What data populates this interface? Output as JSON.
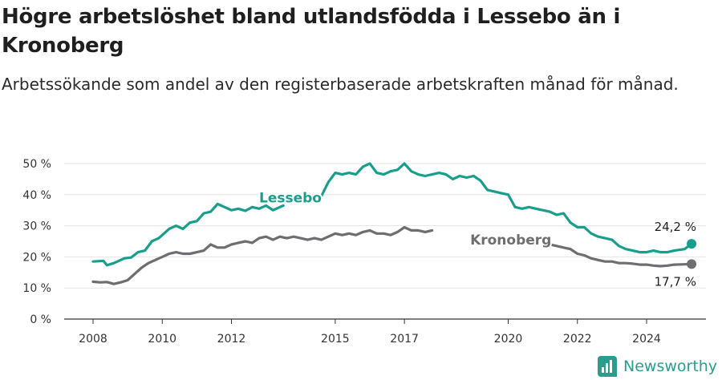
{
  "header": {
    "title": "Högre arbetslöshet bland utlandsfödda i Lessebo än i Kronoberg",
    "subtitle": "Arbetssökande som andel av den registerbaserade arbetskraften månad för månad."
  },
  "brand": {
    "name": "Newsworthy",
    "icon": "bar-chart-logo-icon",
    "color": "#2a9d8f"
  },
  "chart_data": {
    "type": "line",
    "title": "",
    "xlabel": "",
    "ylabel": "",
    "xlim": [
      2007.5,
      2025.9
    ],
    "ylim": [
      0,
      50
    ],
    "grid": true,
    "y_ticks": [
      0,
      10,
      20,
      30,
      40,
      50
    ],
    "y_tick_labels": [
      "0 %",
      "10 %",
      "20 %",
      "30 %",
      "40 %",
      "50 %"
    ],
    "x_ticks": [
      2008,
      2010,
      2012,
      2015,
      2017,
      2020,
      2022,
      2024
    ],
    "x_tick_labels": [
      "2008",
      "2010",
      "2012",
      "2015",
      "2017",
      "2020",
      "2022",
      "2024"
    ],
    "series": [
      {
        "name": "Lessebo",
        "color": "#1a9e8c",
        "end_label": "24,2 %",
        "end_value": 24.2,
        "points": [
          [
            2008.0,
            18.5
          ],
          [
            2008.3,
            18.7
          ],
          [
            2008.4,
            17.3
          ],
          [
            2008.6,
            18.0
          ],
          [
            2008.9,
            19.5
          ],
          [
            2009.1,
            19.8
          ],
          [
            2009.3,
            21.5
          ],
          [
            2009.5,
            22.0
          ],
          [
            2009.7,
            25.0
          ],
          [
            2009.9,
            26.0
          ],
          [
            2010.0,
            27.0
          ],
          [
            2010.2,
            29.0
          ],
          [
            2010.4,
            30.0
          ],
          [
            2010.6,
            29.0
          ],
          [
            2010.8,
            31.0
          ],
          [
            2011.0,
            31.5
          ],
          [
            2011.2,
            34.0
          ],
          [
            2011.4,
            34.5
          ],
          [
            2011.6,
            37.0
          ],
          [
            2011.8,
            36.0
          ],
          [
            2012.0,
            35.0
          ],
          [
            2012.2,
            35.5
          ],
          [
            2012.4,
            34.8
          ],
          [
            2012.6,
            36.0
          ],
          [
            2012.8,
            35.5
          ],
          [
            2013.0,
            36.5
          ],
          [
            2013.2,
            35.0
          ],
          [
            2013.4,
            36.0
          ],
          [
            2013.5,
            36.5
          ]
        ],
        "points_b": [
          [
            2014.5,
            38.5
          ],
          [
            2014.6,
            39.5
          ],
          [
            2014.8,
            44.0
          ],
          [
            2015.0,
            47.0
          ],
          [
            2015.2,
            46.5
          ],
          [
            2015.4,
            47.0
          ],
          [
            2015.6,
            46.5
          ],
          [
            2015.8,
            49.0
          ],
          [
            2016.0,
            50.0
          ],
          [
            2016.2,
            47.0
          ],
          [
            2016.4,
            46.5
          ],
          [
            2016.6,
            47.5
          ],
          [
            2016.8,
            48.0
          ],
          [
            2017.0,
            50.0
          ],
          [
            2017.2,
            47.5
          ],
          [
            2017.4,
            46.5
          ],
          [
            2017.6,
            46.0
          ],
          [
            2017.8,
            46.5
          ],
          [
            2018.0,
            47.0
          ],
          [
            2018.2,
            46.5
          ],
          [
            2018.4,
            45.0
          ]
        ],
        "points_c": [
          [
            2018.4,
            45.0
          ],
          [
            2018.6,
            46.0
          ],
          [
            2018.8,
            45.5
          ],
          [
            2019.0,
            46.0
          ],
          [
            2019.2,
            44.5
          ],
          [
            2019.4,
            41.5
          ],
          [
            2019.6,
            41.0
          ],
          [
            2019.8,
            40.5
          ],
          [
            2020.0,
            40.0
          ],
          [
            2020.2,
            36.0
          ],
          [
            2020.4,
            35.5
          ],
          [
            2020.6,
            36.0
          ],
          [
            2020.8,
            35.5
          ],
          [
            2021.0,
            35.0
          ],
          [
            2021.2,
            34.5
          ],
          [
            2021.4,
            33.5
          ],
          [
            2021.6,
            34.0
          ],
          [
            2021.8,
            31.0
          ],
          [
            2022.0,
            29.5
          ],
          [
            2022.2,
            29.5
          ],
          [
            2022.4,
            27.5
          ],
          [
            2022.6,
            26.5
          ],
          [
            2022.8,
            26.0
          ],
          [
            2023.0,
            25.5
          ],
          [
            2023.2,
            23.5
          ],
          [
            2023.4,
            22.5
          ],
          [
            2023.6,
            22.0
          ],
          [
            2023.8,
            21.5
          ],
          [
            2024.0,
            21.5
          ],
          [
            2024.2,
            22.0
          ],
          [
            2024.4,
            21.5
          ],
          [
            2024.6,
            21.5
          ],
          [
            2024.8,
            22.0
          ],
          [
            2025.1,
            22.5
          ],
          [
            2025.3,
            24.2
          ]
        ],
        "label_position": [
          2012.8,
          39.0
        ]
      },
      {
        "name": "Kronoberg",
        "color": "#6d6d72",
        "end_label": "17,7 %",
        "end_value": 17.7,
        "points": [
          [
            2008.0,
            12.0
          ],
          [
            2008.2,
            11.8
          ],
          [
            2008.4,
            11.9
          ],
          [
            2008.6,
            11.3
          ],
          [
            2008.8,
            11.8
          ],
          [
            2009.0,
            12.5
          ],
          [
            2009.2,
            14.5
          ],
          [
            2009.4,
            16.5
          ],
          [
            2009.6,
            18.0
          ],
          [
            2009.8,
            19.0
          ],
          [
            2010.0,
            20.0
          ],
          [
            2010.2,
            21.0
          ],
          [
            2010.4,
            21.5
          ],
          [
            2010.6,
            21.0
          ],
          [
            2010.8,
            21.0
          ],
          [
            2011.0,
            21.5
          ],
          [
            2011.2,
            22.0
          ],
          [
            2011.4,
            24.0
          ],
          [
            2011.6,
            23.0
          ],
          [
            2011.8,
            23.0
          ],
          [
            2012.0,
            24.0
          ],
          [
            2012.2,
            24.5
          ],
          [
            2012.4,
            25.0
          ],
          [
            2012.6,
            24.5
          ],
          [
            2012.8,
            26.0
          ],
          [
            2013.0,
            26.5
          ],
          [
            2013.2,
            25.5
          ],
          [
            2013.4,
            26.5
          ],
          [
            2013.6,
            26.0
          ],
          [
            2013.8,
            26.5
          ],
          [
            2014.0,
            26.0
          ],
          [
            2014.2,
            25.5
          ],
          [
            2014.4,
            26.0
          ],
          [
            2014.6,
            25.5
          ],
          [
            2014.8,
            26.5
          ],
          [
            2015.0,
            27.5
          ],
          [
            2015.2,
            27.0
          ],
          [
            2015.4,
            27.5
          ],
          [
            2015.6,
            27.0
          ],
          [
            2015.8,
            28.0
          ],
          [
            2016.0,
            28.5
          ],
          [
            2016.2,
            27.5
          ],
          [
            2016.4,
            27.5
          ],
          [
            2016.6,
            27.0
          ],
          [
            2016.8,
            28.0
          ],
          [
            2017.0,
            29.5
          ],
          [
            2017.2,
            28.5
          ],
          [
            2017.4,
            28.5
          ],
          [
            2017.6,
            28.0
          ],
          [
            2017.8,
            28.5
          ]
        ],
        "points_b": [
          [
            2021.0,
            25.5
          ],
          [
            2021.2,
            24.0
          ],
          [
            2021.4,
            23.5
          ],
          [
            2021.6,
            23.0
          ],
          [
            2021.8,
            22.5
          ],
          [
            2022.0,
            21.0
          ],
          [
            2022.2,
            20.5
          ],
          [
            2022.4,
            19.5
          ],
          [
            2022.6,
            19.0
          ],
          [
            2022.8,
            18.5
          ],
          [
            2023.0,
            18.5
          ],
          [
            2023.2,
            18.0
          ],
          [
            2023.4,
            18.0
          ],
          [
            2023.6,
            17.8
          ],
          [
            2023.8,
            17.5
          ],
          [
            2024.0,
            17.5
          ],
          [
            2024.2,
            17.2
          ],
          [
            2024.4,
            17.0
          ],
          [
            2024.6,
            17.2
          ],
          [
            2024.8,
            17.5
          ],
          [
            2025.1,
            17.6
          ],
          [
            2025.3,
            17.7
          ]
        ],
        "label_position": [
          2018.9,
          25.5
        ]
      }
    ]
  }
}
